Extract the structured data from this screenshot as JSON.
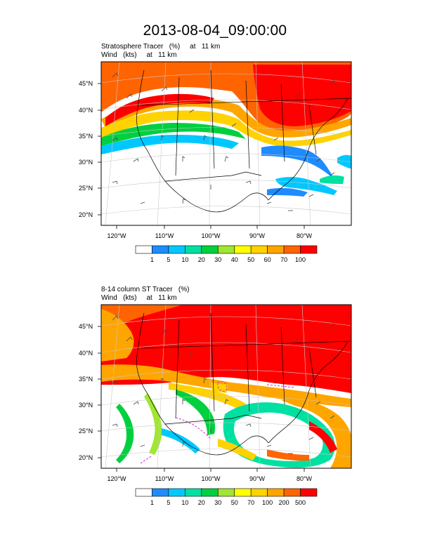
{
  "title": "2013-08-04_09:00:00",
  "panels": [
    {
      "field_label": "Stratosphere Tracer   (%)     at   11 km",
      "wind_label": "Wind   (kts)     at   11 km",
      "lat_labels": [
        "45°N",
        "40°N",
        "35°N",
        "30°N",
        "25°N",
        "20°N"
      ],
      "lon_labels": [
        "120°W",
        "110°W",
        "100°W",
        "90°W",
        "80°W"
      ],
      "colorbar": {
        "colors": [
          "#ffffff",
          "#1e8cff",
          "#00c8ff",
          "#00e0a0",
          "#00d040",
          "#a0e632",
          "#ffff00",
          "#ffd200",
          "#ffa500",
          "#ff6400",
          "#ff0000"
        ],
        "labels": [
          "1",
          "5",
          "10",
          "20",
          "30",
          "40",
          "50",
          "60",
          "70",
          "100"
        ]
      }
    },
    {
      "field_label": "8-14 column ST Tracer   (%)",
      "wind_label": "Wind   (kts)     at   11 km",
      "lat_labels": [
        "45°N",
        "40°N",
        "35°N",
        "30°N",
        "25°N",
        "20°N"
      ],
      "lon_labels": [
        "120°W",
        "110°W",
        "100°W",
        "90°W",
        "80°W"
      ],
      "colorbar": {
        "colors": [
          "#ffffff",
          "#1e8cff",
          "#00c8ff",
          "#00e0a0",
          "#00d040",
          "#a0e632",
          "#ffff00",
          "#ffd200",
          "#ffa500",
          "#ff6400",
          "#ff0000"
        ],
        "labels": [
          "1",
          "5",
          "10",
          "20",
          "30",
          "50",
          "70",
          "100",
          "200",
          "500"
        ]
      }
    }
  ]
}
